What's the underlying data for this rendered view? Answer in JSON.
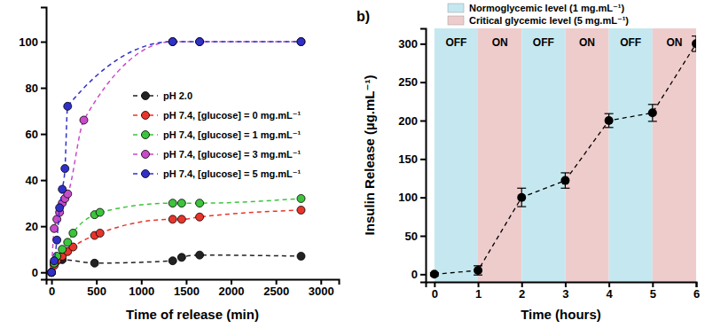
{
  "chart_data": [
    {
      "type": "line",
      "x_label": "Time of release (min)",
      "xlim": [
        -60,
        3200
      ],
      "xticks": [
        0,
        500,
        1000,
        1500,
        2000,
        2500,
        3000
      ],
      "ylim": [
        -3,
        115
      ],
      "yticks": [
        0,
        20,
        40,
        60,
        80,
        100
      ],
      "marker": "circle",
      "line_style": "dashed",
      "legend": "center",
      "series": [
        {
          "name": "pH 2.0",
          "color": "#222222",
          "x": [
            0,
            30,
            60,
            120,
            480,
            1350,
            1450,
            1650,
            2780
          ],
          "values": [
            0,
            4,
            5,
            5.5,
            4,
            5,
            6.5,
            7.5,
            7
          ]
        },
        {
          "name": "pH 7.4, [glucose] = 0 mg.mL⁻¹",
          "color": "#e8352b",
          "x": [
            0,
            30,
            60,
            120,
            180,
            240,
            480,
            540,
            1350,
            1450,
            1650,
            2780
          ],
          "values": [
            0,
            3,
            5,
            7,
            9,
            11,
            16,
            17,
            23,
            23,
            24,
            27
          ]
        },
        {
          "name": "pH 7.4, [glucose] = 1 mg.mL⁻¹",
          "color": "#3cc43c",
          "x": [
            0,
            30,
            60,
            120,
            180,
            240,
            480,
            540,
            1350,
            1450,
            1650,
            2780
          ],
          "values": [
            0,
            4,
            7,
            10,
            13,
            17,
            25,
            26,
            30,
            30,
            30,
            32
          ]
        },
        {
          "name": "pH 7.4, [glucose] = 3 mg.mL⁻¹",
          "color": "#c84bc8",
          "x": [
            0,
            30,
            60,
            90,
            120,
            150,
            180,
            360,
            1350,
            1650,
            2780
          ],
          "values": [
            0,
            19,
            23,
            26,
            30,
            32,
            34,
            66,
            100,
            100,
            100
          ]
        },
        {
          "name": "pH 7.4, [glucose] = 5 mg.mL⁻¹",
          "color": "#3030c8",
          "x": [
            0,
            30,
            60,
            90,
            120,
            150,
            180,
            1350,
            1650,
            2780
          ],
          "values": [
            0,
            5,
            14,
            28,
            36,
            45,
            72,
            100,
            100,
            100
          ]
        }
      ]
    },
    {
      "type": "line",
      "panel_label": "b)",
      "x_label": "Time (hours)",
      "y_label": "Insulin Release (µg.mL⁻¹)",
      "x": [
        0,
        1,
        2,
        3,
        4,
        5,
        6
      ],
      "xlim": [
        -0.2,
        6
      ],
      "xticks": [
        0,
        1,
        2,
        3,
        4,
        5,
        6
      ],
      "ylim": [
        -10,
        320
      ],
      "yticks": [
        0,
        50,
        100,
        150,
        200,
        250,
        300
      ],
      "marker": "circle",
      "line_style": "dashed",
      "legend": "top",
      "series": [
        {
          "color": "#000000",
          "values": [
            0,
            5,
            100,
            122,
            200,
            210,
            300
          ],
          "errors": [
            2,
            6,
            12,
            10,
            9,
            11,
            10
          ]
        }
      ],
      "bands": [
        {
          "start": 0,
          "end": 1,
          "label": "OFF",
          "color": "#c5e8f0"
        },
        {
          "start": 1,
          "end": 2,
          "label": "ON",
          "color": "#efcccc"
        },
        {
          "start": 2,
          "end": 3,
          "label": "OFF",
          "color": "#c5e8f0"
        },
        {
          "start": 3,
          "end": 4,
          "label": "ON",
          "color": "#efcccc"
        },
        {
          "start": 4,
          "end": 5,
          "label": "OFF",
          "color": "#c5e8f0"
        },
        {
          "start": 5,
          "end": 6,
          "label": "ON",
          "color": "#efcccc"
        }
      ],
      "band_legend": [
        {
          "label": "Normoglycemic level (1 mg.mL⁻¹)",
          "color": "#c5e8f0"
        },
        {
          "label": "Critical glycemic level (5 mg.mL⁻¹)",
          "color": "#efcccc"
        }
      ]
    }
  ]
}
